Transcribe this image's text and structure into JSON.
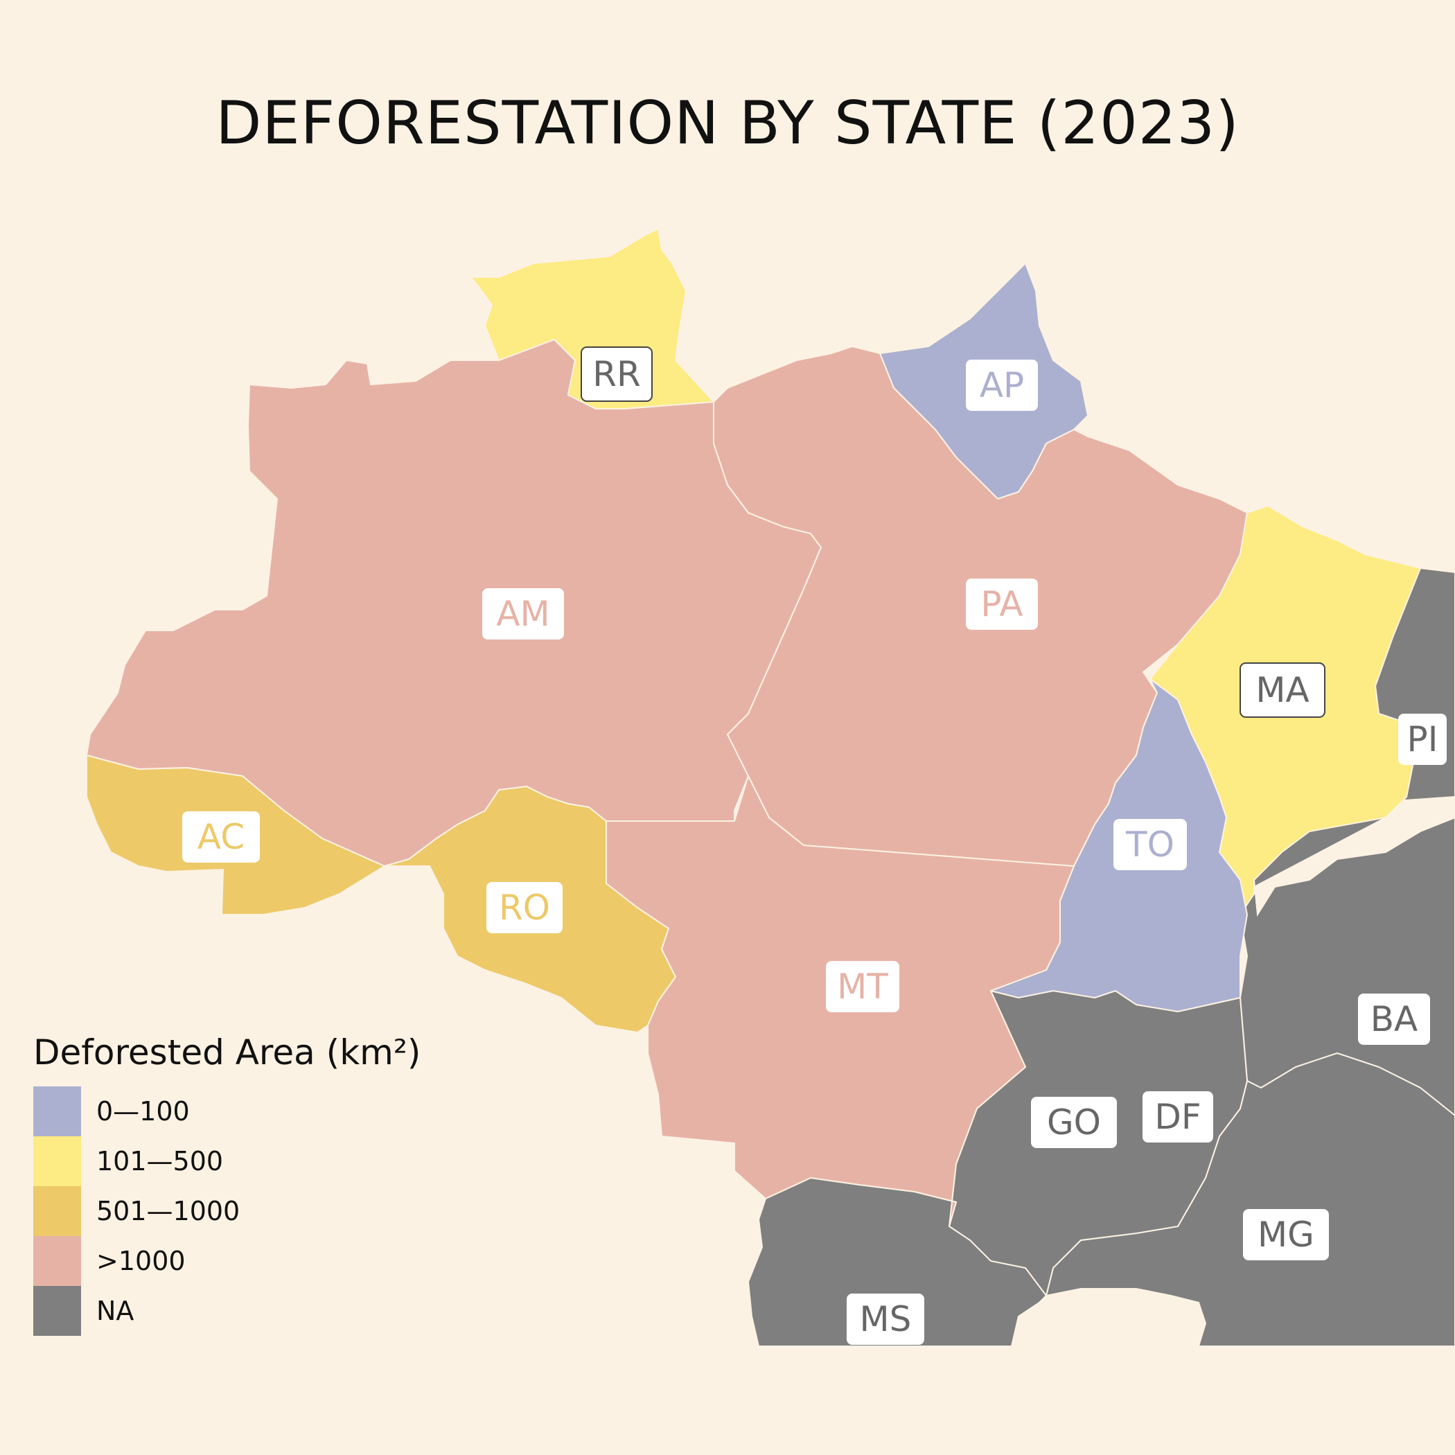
{
  "title": "DEFORESTATION BY STATE (2023)",
  "legend": {
    "title": "Deforested Area (km²)",
    "items": [
      {
        "label": "0—100",
        "color": "#abb0d0"
      },
      {
        "label": "101—500",
        "color": "#fdeb83"
      },
      {
        "label": "501—1000",
        "color": "#edc968"
      },
      {
        ">": "",
        "label": ">1000",
        "color": "#e7b2a6"
      },
      {
        "label": "NA",
        "color": "#7f7f7f"
      }
    ]
  },
  "states": {
    "RR": {
      "label": "RR",
      "category": "101—500"
    },
    "AP": {
      "label": "AP",
      "category": "0—100"
    },
    "AM": {
      "label": "AM",
      "category": ">1000"
    },
    "PA": {
      "label": "PA",
      "category": ">1000"
    },
    "MA": {
      "label": "MA",
      "category": "101—500"
    },
    "PI": {
      "label": "PI",
      "category": "NA"
    },
    "AC": {
      "label": "AC",
      "category": "501—1000"
    },
    "RO": {
      "label": "RO",
      "category": "501—1000"
    },
    "TO": {
      "label": "TO",
      "category": "0—100"
    },
    "MT": {
      "label": "MT",
      "category": ">1000"
    },
    "BA": {
      "label": "BA",
      "category": "NA"
    },
    "GO": {
      "label": "GO",
      "category": "NA"
    },
    "DF": {
      "label": "DF",
      "category": "NA"
    },
    "MG": {
      "label": "MG",
      "category": "NA"
    },
    "MS": {
      "label": "MS",
      "category": "NA"
    }
  },
  "colors": {
    "background": "#fcf2e3",
    "label_dark": "#666666"
  }
}
